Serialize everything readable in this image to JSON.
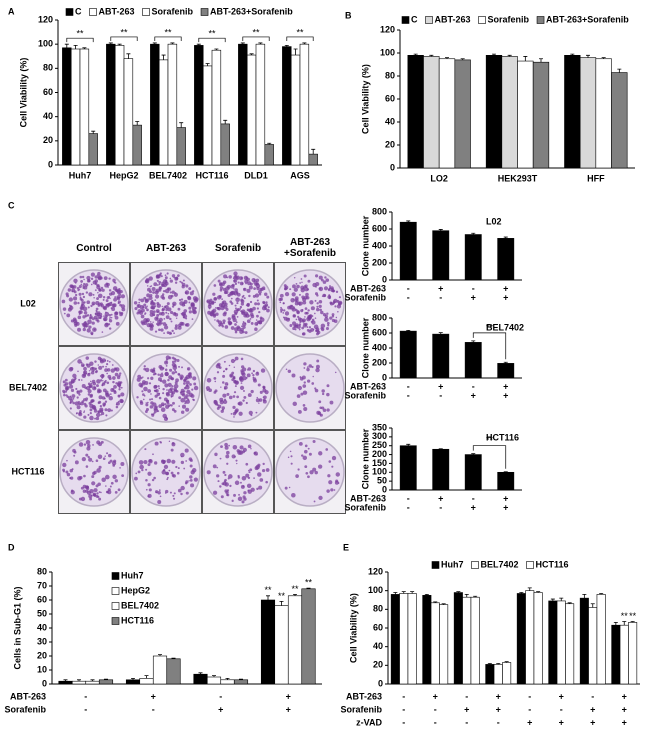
{
  "chart_data": [
    {
      "type": "bar",
      "panel": "A",
      "ylabel": "Cell Viability (%)",
      "categories": [
        "Huh7",
        "HepG2",
        "BEL7402",
        "HCT116",
        "DLD1",
        "AGS"
      ],
      "series": [
        {
          "name": "C",
          "color": "#000000",
          "values": [
            97,
            100,
            100,
            99,
            100,
            98
          ],
          "errors": [
            3,
            1,
            1,
            1,
            1,
            1
          ]
        },
        {
          "name": "ABT-263",
          "color": "#ffffff",
          "values": [
            96,
            99,
            87,
            82,
            91,
            91
          ],
          "errors": [
            3,
            1,
            4,
            2,
            1,
            5
          ]
        },
        {
          "name": "Sorafenib",
          "color": "#ffffff",
          "values": [
            96,
            88,
            100,
            95,
            100,
            100
          ],
          "errors": [
            1,
            4,
            1,
            1,
            1,
            1
          ]
        },
        {
          "name": "ABT-263+Sorafenib",
          "color": "#808080",
          "values": [
            26,
            33,
            31,
            34,
            17,
            9
          ],
          "errors": [
            2,
            3,
            4,
            3,
            1,
            4
          ]
        }
      ],
      "brackets": [
        "**",
        "**",
        "**",
        "**",
        "**",
        "**"
      ],
      "ylim": [
        0,
        120
      ],
      "yticks": [
        0,
        20,
        40,
        60,
        80,
        100,
        120
      ],
      "legend": "top"
    },
    {
      "type": "bar",
      "panel": "B",
      "ylabel": "Cell Viability (%)",
      "categories": [
        "LO2",
        "HEK293T",
        "HFF"
      ],
      "series": [
        {
          "name": "C",
          "color": "#000000",
          "values": [
            98,
            98,
            98
          ],
          "errors": [
            1,
            1,
            1
          ]
        },
        {
          "name": "ABT-263",
          "color": "#d9d9d9",
          "values": [
            97,
            97,
            96
          ],
          "errors": [
            1,
            1,
            2
          ]
        },
        {
          "name": "Sorafenib",
          "color": "#ffffff",
          "values": [
            95,
            93,
            95
          ],
          "errors": [
            1,
            4,
            1
          ]
        },
        {
          "name": "ABT-263+Sorafenib",
          "color": "#808080",
          "values": [
            94,
            92,
            83
          ],
          "errors": [
            1,
            3,
            3
          ]
        }
      ],
      "ylim": [
        0,
        120
      ],
      "yticks": [
        0,
        20,
        40,
        60,
        80,
        100,
        120
      ],
      "legend": "top"
    },
    {
      "type": "bar",
      "title": "L02",
      "ylabel": "Clone number",
      "color": "#000000",
      "values": [
        680,
        580,
        535,
        490
      ],
      "errors": [
        15,
        15,
        15,
        15
      ],
      "ylim": [
        0,
        800
      ],
      "yticks": [
        0,
        200,
        400,
        600,
        800
      ],
      "conditions": [
        {
          "label": "ABT-263",
          "signs": [
            "-",
            "+",
            "-",
            "+"
          ]
        },
        {
          "label": "Sorafenib",
          "signs": [
            "-",
            "-",
            "+",
            "+"
          ]
        }
      ]
    },
    {
      "type": "bar",
      "title": "BEL7402",
      "ylabel": "Clone number",
      "color": "#000000",
      "values": [
        625,
        585,
        475,
        195
      ],
      "errors": [
        10,
        20,
        20,
        15
      ],
      "bracket": "**",
      "ylim": [
        0,
        800
      ],
      "yticks": [
        0,
        200,
        400,
        600,
        800
      ],
      "conditions": [
        {
          "label": "ABT-263",
          "signs": [
            "-",
            "+",
            "-",
            "+"
          ]
        },
        {
          "label": "Sorafenib",
          "signs": [
            "-",
            "-",
            "+",
            "+"
          ]
        }
      ]
    },
    {
      "type": "bar",
      "title": "HCT116",
      "ylabel": "Clone number",
      "color": "#000000",
      "values": [
        250,
        230,
        200,
        100
      ],
      "errors": [
        8,
        3,
        5,
        3
      ],
      "bracket": "**",
      "ylim": [
        0,
        350
      ],
      "yticks": [
        0,
        50,
        100,
        150,
        200,
        250,
        300,
        350
      ],
      "conditions": [
        {
          "label": "ABT-263",
          "signs": [
            "-",
            "+",
            "-",
            "+"
          ]
        },
        {
          "label": "Sorafenib",
          "signs": [
            "-",
            "-",
            "+",
            "+"
          ]
        }
      ]
    },
    {
      "type": "bar",
      "panel": "D",
      "ylabel": "Cells in Sub-G1 (%)",
      "series": [
        {
          "name": "Huh7",
          "color": "#000000",
          "values": [
            2,
            3,
            7,
            60
          ],
          "errors": [
            1,
            1,
            1,
            3
          ],
          "annotations": [
            null,
            null,
            null,
            "**"
          ]
        },
        {
          "name": "HepG2",
          "color": "#ffffff",
          "values": [
            2,
            4,
            5,
            56
          ],
          "errors": [
            1,
            2,
            1,
            3
          ],
          "annotations": [
            null,
            null,
            null,
            "**"
          ]
        },
        {
          "name": "BEL7402",
          "color": "#ffffff",
          "values": [
            2,
            20,
            3,
            63
          ],
          "errors": [
            1,
            1,
            1,
            1
          ],
          "annotations": [
            null,
            null,
            null,
            "**"
          ]
        },
        {
          "name": "HCT116",
          "color": "#808080",
          "values": [
            3,
            18,
            3,
            68
          ],
          "errors": [
            0.5,
            0.5,
            0.5,
            0.5
          ],
          "annotations": [
            null,
            null,
            null,
            "**"
          ]
        }
      ],
      "ylim": [
        0,
        80
      ],
      "yticks": [
        0,
        10,
        20,
        30,
        40,
        50,
        60,
        70,
        80
      ],
      "legend": "upper left",
      "conditions": [
        {
          "label": "ABT-263",
          "signs": [
            "-",
            "+",
            "-",
            "+"
          ]
        },
        {
          "label": "Sorafenib",
          "signs": [
            "-",
            "-",
            "+",
            "+"
          ]
        }
      ]
    },
    {
      "type": "bar",
      "panel": "E",
      "ylabel": "Cell Viability (%)",
      "series": [
        {
          "name": "Huh7",
          "color": "#000000",
          "values": [
            96,
            95,
            98,
            21,
            97,
            89,
            92,
            63
          ],
          "errors": [
            2,
            1,
            1,
            1,
            1,
            2,
            4,
            3
          ]
        },
        {
          "name": "BEL7402",
          "color": "#ffffff",
          "values": [
            97,
            87,
            93,
            21,
            100,
            89,
            82,
            63
          ],
          "errors": [
            2,
            1,
            3,
            1,
            3,
            3,
            4,
            4
          ],
          "annotations": [
            null,
            null,
            null,
            null,
            null,
            null,
            null,
            "**"
          ]
        },
        {
          "name": "HCT116",
          "color": "#ffffff",
          "values": [
            97,
            85,
            93,
            23,
            98,
            86,
            96,
            66
          ],
          "errors": [
            2,
            1,
            1,
            1,
            1,
            1,
            1,
            1
          ],
          "annotations": [
            null,
            null,
            null,
            null,
            null,
            null,
            null,
            "**"
          ]
        }
      ],
      "ylim": [
        0,
        120
      ],
      "yticks": [
        0,
        20,
        40,
        60,
        80,
        100,
        120
      ],
      "legend": "top",
      "conditions": [
        {
          "label": "ABT-263",
          "signs": [
            "-",
            "+",
            "-",
            "+",
            "-",
            "+",
            "-",
            "+"
          ]
        },
        {
          "label": "Sorafenib",
          "signs": [
            "-",
            "-",
            "+",
            "+",
            "-",
            "-",
            "+",
            "+"
          ]
        },
        {
          "label": "z-VAD",
          "signs": [
            "-",
            "-",
            "-",
            "-",
            "+",
            "+",
            "+",
            "+"
          ]
        }
      ]
    }
  ],
  "colony_assay": {
    "panel": "C",
    "columns": [
      "Control",
      "ABT-263",
      "Sorafenib",
      "ABT-263 +Sorafenib"
    ],
    "rows": [
      "L02",
      "BEL7402",
      "HCT116"
    ]
  }
}
